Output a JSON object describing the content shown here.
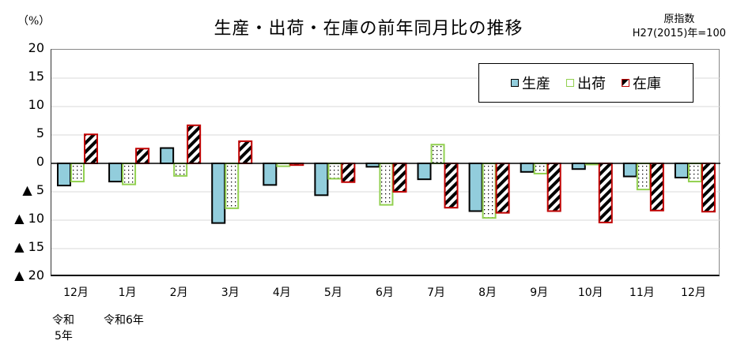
{
  "header": {
    "title": "生産・出荷・在庫の前年同月比の推移",
    "unit": "（%）",
    "note_line1": "原指数",
    "note_line2": "H27(2015)年=100"
  },
  "legend": {
    "items": [
      {
        "label": "生産",
        "color": "#92CDDC",
        "border": "#000000"
      },
      {
        "label": "出荷",
        "color": "#FFFFFF",
        "border": "#92D050"
      },
      {
        "label": "在庫",
        "color": "#FFFFFF",
        "border": "#C00000"
      }
    ]
  },
  "y_axis": {
    "ticks": [
      {
        "value": 20,
        "label": "20"
      },
      {
        "value": 15,
        "label": "15"
      },
      {
        "value": 10,
        "label": "10"
      },
      {
        "value": 5,
        "label": "5"
      },
      {
        "value": 0,
        "label": "0"
      },
      {
        "value": -5,
        "label": "▲ 5"
      },
      {
        "value": -10,
        "label": "▲ 10"
      },
      {
        "value": -15,
        "label": "▲ 15"
      },
      {
        "value": -20,
        "label": "▲ 20"
      }
    ]
  },
  "x_axis": {
    "era_labels": [
      {
        "label_line1": "令和",
        "label_line2": "5年"
      },
      {
        "label_line1": "令和6年",
        "label_line2": ""
      }
    ]
  },
  "chart_data": {
    "type": "bar",
    "title": "生産・出荷・在庫の前年同月比の推移",
    "xlabel": "",
    "ylabel": "（%）",
    "ylim": [
      -20,
      20
    ],
    "grid": true,
    "legend_position": "top-right",
    "categories": [
      "12月",
      "1月",
      "2月",
      "3月",
      "4月",
      "5月",
      "6月",
      "7月",
      "8月",
      "9月",
      "10月",
      "11月",
      "12月"
    ],
    "series": [
      {
        "name": "生産",
        "values": [
          -3.9,
          -3.2,
          2.7,
          -10.5,
          -3.8,
          -5.6,
          -0.6,
          -2.8,
          -8.4,
          -1.5,
          -1.0,
          -2.3,
          -2.5
        ]
      },
      {
        "name": "出荷",
        "values": [
          -3.2,
          -3.7,
          -2.2,
          -7.9,
          -0.5,
          -2.7,
          -7.3,
          3.3,
          -9.6,
          -1.8,
          -0.2,
          -4.6,
          -3.2
        ]
      },
      {
        "name": "在庫",
        "values": [
          5.1,
          2.6,
          6.7,
          3.9,
          -0.3,
          -3.3,
          -5.0,
          -7.8,
          -8.7,
          -8.4,
          -10.4,
          -8.3,
          -8.5
        ]
      }
    ],
    "annotations": [
      "原指数",
      "H27(2015)年=100",
      "令和5年",
      "令和6年"
    ]
  }
}
